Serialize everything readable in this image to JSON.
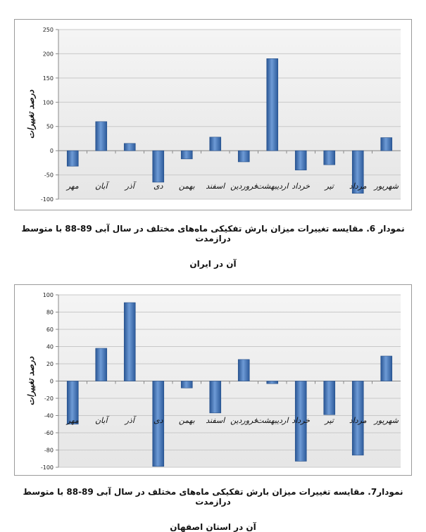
{
  "chart_data": [
    {
      "type": "bar",
      "ylabel": "درصد تغییرات",
      "ylim": [
        -100,
        250
      ],
      "yticks": [
        -100,
        -50,
        0,
        50,
        100,
        150,
        200,
        250
      ],
      "grid": true,
      "categories": [
        "مهر",
        "آبان",
        "آذر",
        "دی",
        "بهمن",
        "اسفند",
        "فروردین",
        "اردیبهشت",
        "خرداد",
        "تیر",
        "مرداد",
        "شهریور"
      ],
      "values": [
        -32,
        60,
        15,
        -65,
        -17,
        28,
        -23,
        190,
        -40,
        -29,
        -88,
        27
      ],
      "color": "#3a6fb4"
    },
    {
      "type": "bar",
      "ylabel": "درصد تغییرات",
      "ylim": [
        -100,
        100
      ],
      "yticks": [
        -100,
        -80,
        -60,
        -40,
        -20,
        0,
        20,
        40,
        60,
        80,
        100
      ],
      "grid": true,
      "categories": [
        "مهر",
        "آبان",
        "آذر",
        "دی",
        "بهمن",
        "اسفند",
        "فروردین",
        "اردیبهشت",
        "خرداد",
        "تیر",
        "مرداد",
        "شهریور"
      ],
      "values": [
        -50,
        38,
        91,
        -99,
        -8,
        -37,
        25,
        -3,
        -93,
        -39,
        -86,
        29
      ],
      "color": "#3a6fb4"
    }
  ],
  "captions": [
    {
      "line1": "نمودار 6. مقایسه تغییرات میزان بارش تفکیکی ماه‌های مختلف در سال آبی 89-88 با متوسط درازمدت",
      "line2": "آن در ایران"
    },
    {
      "line1": "نمودار7. مقایسه تغییرات میزان بارش تفکیکی ماه‌های مختلف در سال آبی 89-88 با متوسط درازمدت",
      "line2": "آن در استان اصفهان"
    }
  ]
}
